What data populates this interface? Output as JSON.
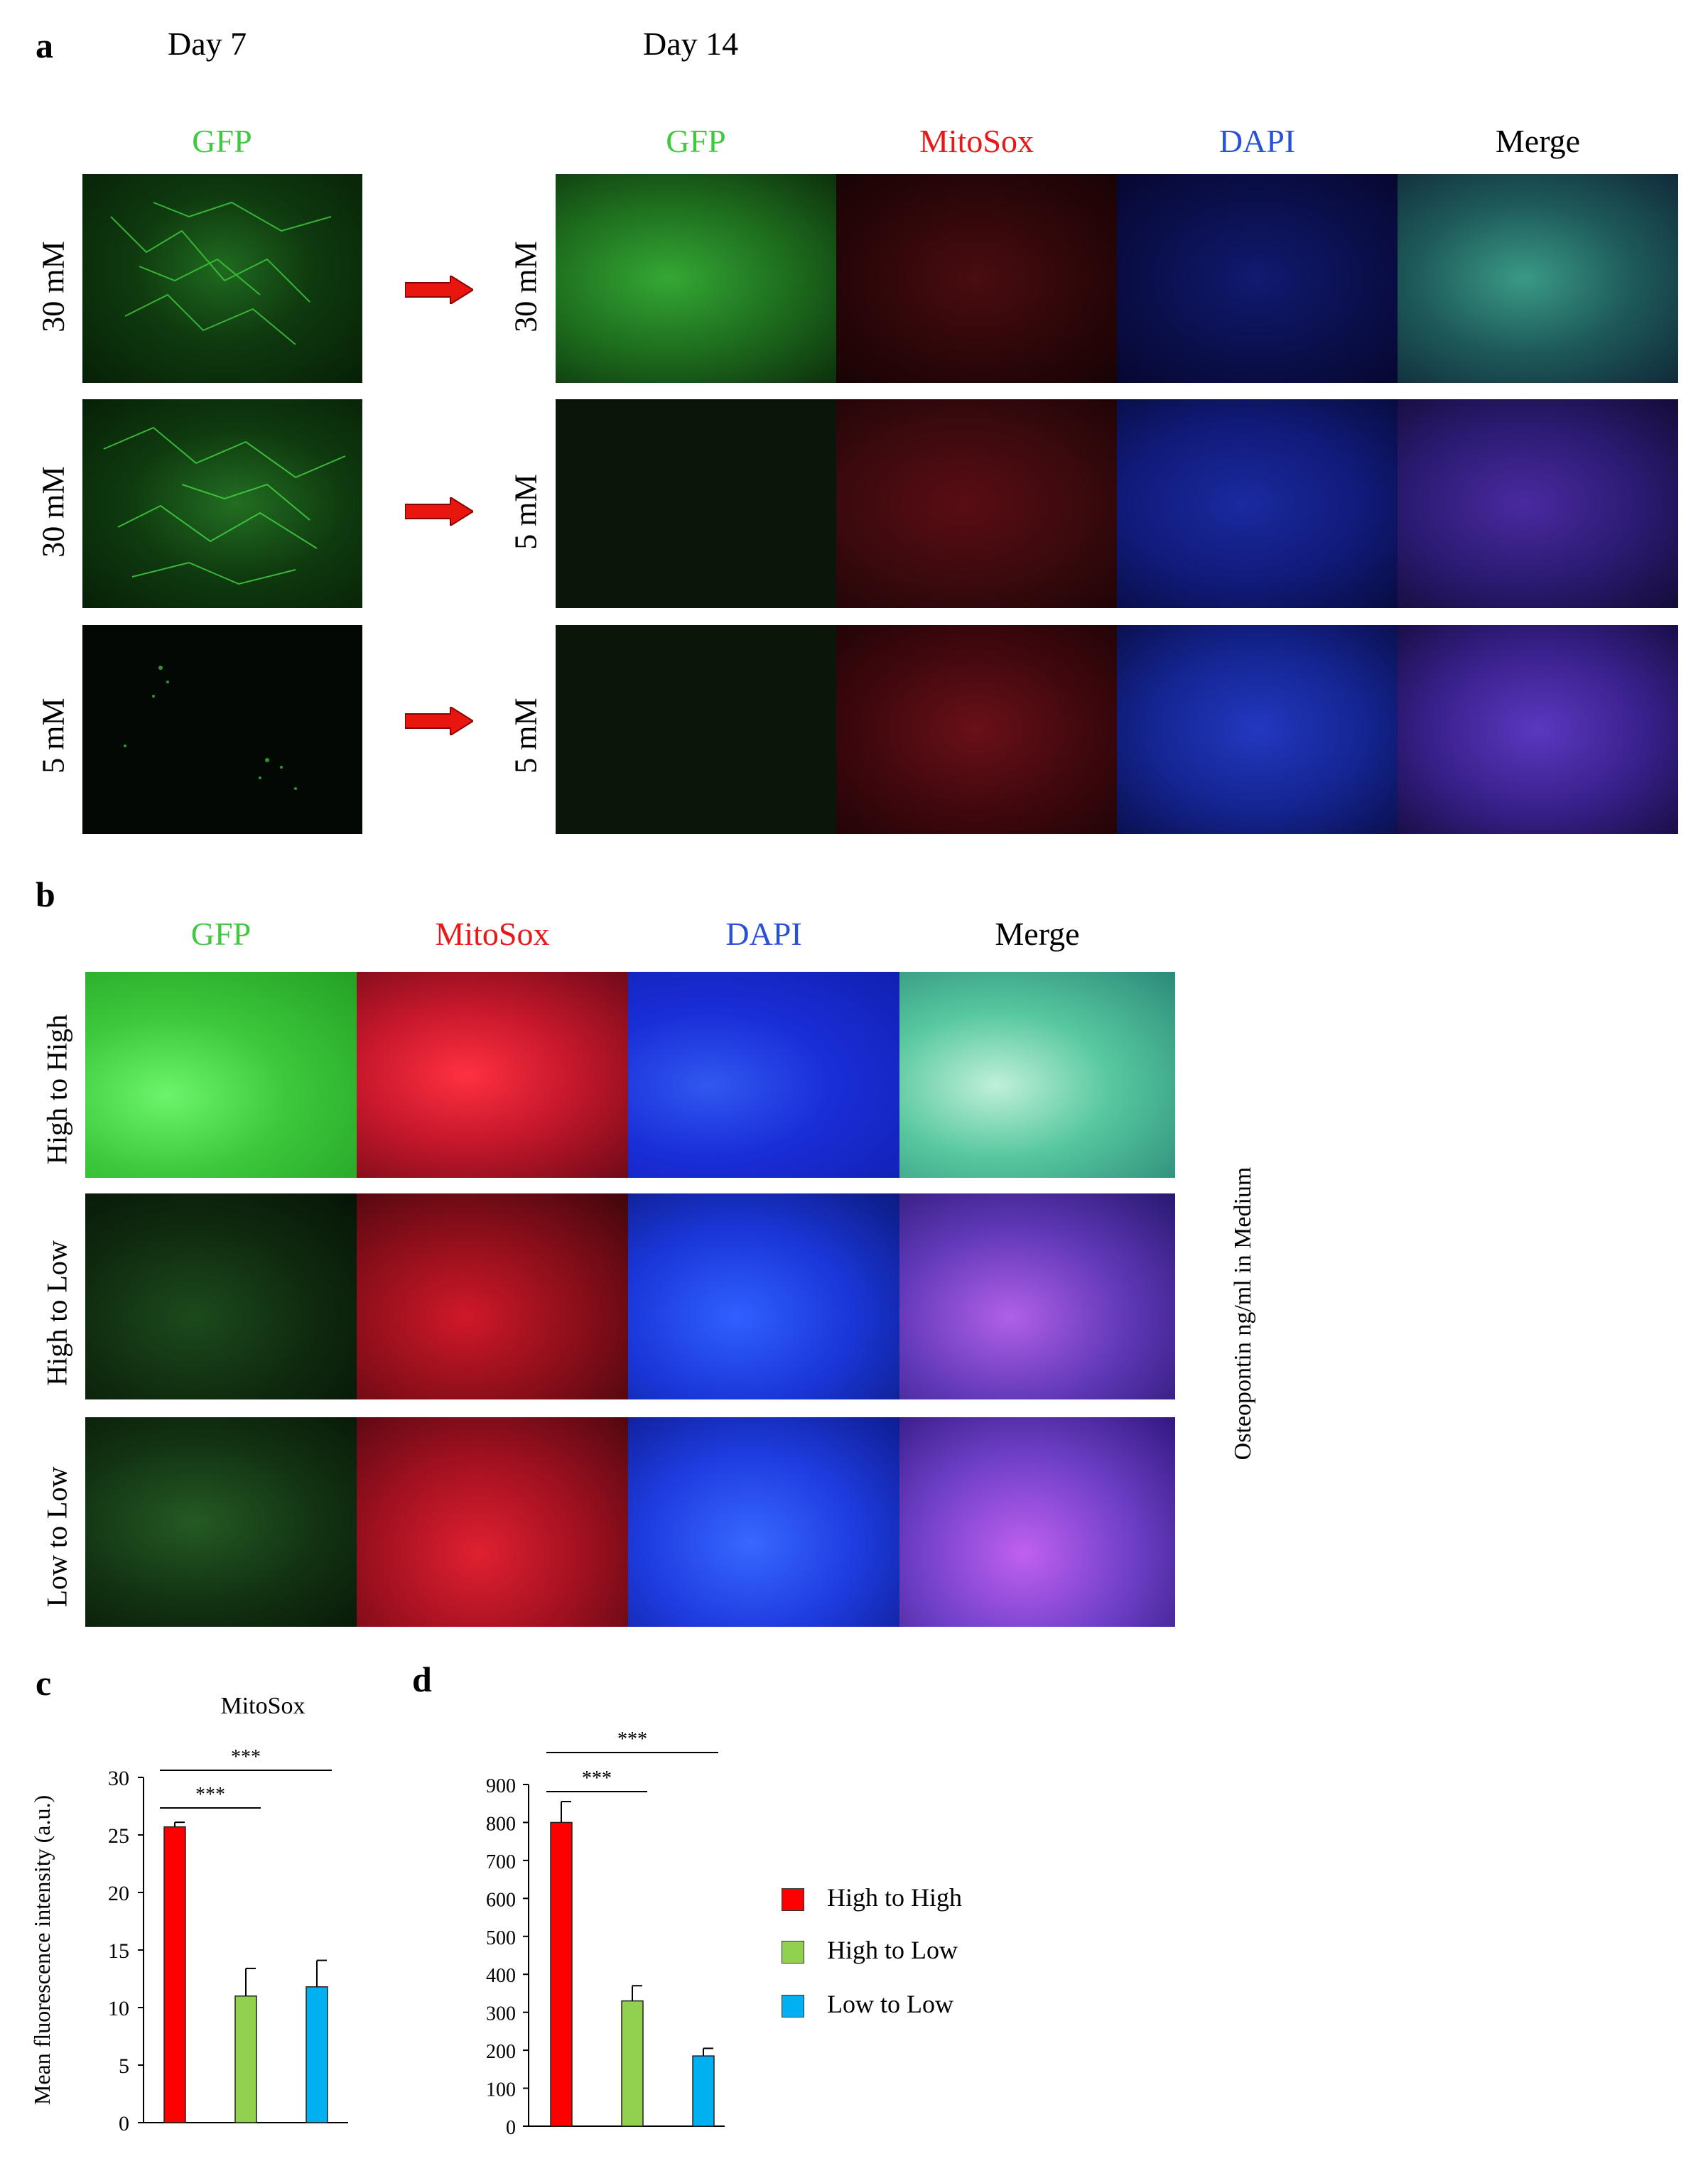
{
  "panel_a": {
    "letter": "a",
    "day7_label": "Day 7",
    "day14_label": "Day 14",
    "day7_header": "GFP",
    "day14_headers": [
      "GFP",
      "MitoSox",
      "DAPI",
      "Merge"
    ],
    "day7_rows": [
      "30 mM",
      "30 mM",
      "5 mM"
    ],
    "day14_rows": [
      "30 mM",
      "5 mM",
      "5 mM"
    ]
  },
  "panel_b": {
    "letter": "b",
    "headers": [
      "GFP",
      "MitoSox",
      "DAPI",
      "Merge"
    ],
    "rows": [
      "High to High",
      "High to Low",
      "Low to Low"
    ],
    "side_label": "Osteopontin ng/ml in Medium"
  },
  "colors": {
    "gfp": "#3ec93e",
    "mitosox": "#e81818",
    "dapi": "#2850d8",
    "arrow": "#e8160e",
    "bar_high_high": "#ff0000",
    "bar_high_low": "#92d050",
    "bar_low_low": "#00b0f0"
  },
  "chart_data": [
    {
      "panel": "c",
      "type": "bar",
      "title": "MitoSox",
      "ylabel": "Mean fluorescence intensity (a.u.)",
      "categories": [
        "High to High",
        "High to Low",
        "Low to Low"
      ],
      "values": [
        25.7,
        11,
        11.8
      ],
      "errors": [
        0.4,
        2.4,
        2.3
      ],
      "ylim": [
        0,
        30
      ],
      "yticks": [
        0,
        5,
        10,
        15,
        20,
        25,
        30
      ],
      "significance": [
        {
          "from": 0,
          "to": 1,
          "label": "***"
        },
        {
          "from": 0,
          "to": 2,
          "label": "***"
        }
      ]
    },
    {
      "panel": "d",
      "type": "bar",
      "title": "",
      "ylabel": "",
      "categories": [
        "High to High",
        "High to Low",
        "Low to Low"
      ],
      "values": [
        800,
        330,
        185
      ],
      "errors": [
        55,
        40,
        20
      ],
      "ylim": [
        0,
        900
      ],
      "yticks": [
        0,
        100,
        200,
        300,
        400,
        500,
        600,
        700,
        800,
        900
      ],
      "significance": [
        {
          "from": 0,
          "to": 1,
          "label": "***"
        },
        {
          "from": 0,
          "to": 2,
          "label": "***"
        }
      ]
    }
  ],
  "legend": {
    "entries": [
      "High to High",
      "High to Low",
      "Low to Low"
    ]
  },
  "panel_c_letter": "c",
  "panel_d_letter": "d"
}
